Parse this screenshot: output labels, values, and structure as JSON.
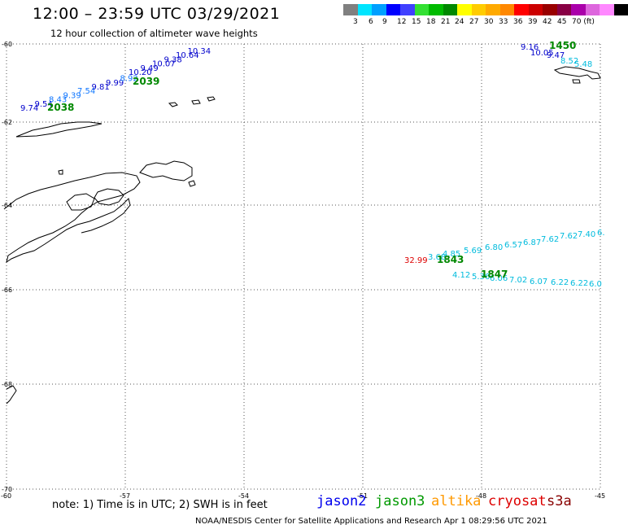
{
  "header": {
    "title": "12:00 – 23:59 UTC 03/29/2021",
    "subtitle": "12 hour collection of altimeter wave heights"
  },
  "legend": {
    "colors": [
      "#808080",
      "#00e5ff",
      "#00a0ff",
      "#0000ff",
      "#4040ff",
      "#33e033",
      "#00bb00",
      "#008800",
      "#ffff00",
      "#ffcc00",
      "#ffaa00",
      "#ff8800",
      "#ff0000",
      "#cc0000",
      "#990000",
      "#880044",
      "#aa00aa",
      "#dd66dd",
      "#ff88ff",
      "#000000"
    ],
    "labels": [
      "3",
      "6",
      "9",
      "12",
      "15",
      "18",
      "21",
      "24",
      "27",
      "30",
      "33",
      "36",
      "39",
      "42",
      "45",
      "70 (ft)"
    ]
  },
  "map_axes": {
    "lat_labels": [
      "-60",
      "-62",
      "-64",
      "-66",
      "-68",
      "-70"
    ],
    "lon_labels": [
      "-60",
      "-57",
      "-54",
      "-51",
      "-48",
      "-45"
    ]
  },
  "tracks": [
    {
      "time": "2038",
      "time_color": "#008800",
      "readings": [
        {
          "v": "9.74",
          "c": "#0000cc"
        },
        {
          "v": "9.54",
          "c": "#0000cc"
        },
        {
          "v": "8.43",
          "c": "#1177ff"
        },
        {
          "v": "9.39",
          "c": "#1177ff"
        },
        {
          "v": "7.54",
          "c": "#1177ff"
        },
        {
          "v": "9.81",
          "c": "#0000cc"
        },
        {
          "v": "9.99",
          "c": "#0000cc"
        },
        {
          "v": "8.92",
          "c": "#1177ff"
        }
      ]
    },
    {
      "time": "2039",
      "time_color": "#008800",
      "readings": [
        {
          "v": "10.20",
          "c": "#0000cc"
        },
        {
          "v": "9.49",
          "c": "#0000cc"
        },
        {
          "v": "10.07",
          "c": "#0000cc"
        },
        {
          "v": "9.38",
          "c": "#0000cc"
        },
        {
          "v": "10.64",
          "c": "#0000cc"
        },
        {
          "v": "10.34",
          "c": "#0000cc"
        }
      ]
    },
    {
      "time": "1450",
      "time_color": "#008800",
      "readings": [
        {
          "v": "9.16",
          "c": "#0000cc"
        },
        {
          "v": "10.05",
          "c": "#0000cc"
        },
        {
          "v": "9.47",
          "c": "#0000cc"
        },
        {
          "v": "8.52",
          "c": "#00bbdd"
        },
        {
          "v": "5.48",
          "c": "#00bbdd"
        }
      ]
    },
    {
      "time": "1843",
      "time_color": "#008800",
      "readings": [
        {
          "v": "32.99",
          "c": "#dd0000"
        },
        {
          "v": "3.68",
          "c": "#00bbdd"
        },
        {
          "v": "4.85",
          "c": "#00bbdd"
        },
        {
          "v": "5.69",
          "c": "#00bbdd"
        },
        {
          "v": "6.80",
          "c": "#00bbdd"
        },
        {
          "v": "6.57",
          "c": "#00bbdd"
        },
        {
          "v": "6.87",
          "c": "#00bbdd"
        },
        {
          "v": "7.62",
          "c": "#00bbdd"
        },
        {
          "v": "7.62",
          "c": "#00bbdd"
        },
        {
          "v": "7.40",
          "c": "#00bbdd"
        },
        {
          "v": "6.",
          "c": "#00bbdd"
        }
      ]
    },
    {
      "time": "1847",
      "time_color": "#008800",
      "readings": [
        {
          "v": "4.12",
          "c": "#00bbdd"
        },
        {
          "v": "5.36",
          "c": "#00bbdd"
        },
        {
          "v": "6.06",
          "c": "#00bbdd"
        },
        {
          "v": "7.02",
          "c": "#00bbdd"
        },
        {
          "v": "6.07",
          "c": "#00bbdd"
        },
        {
          "v": "6.22",
          "c": "#00bbdd"
        },
        {
          "v": "6.22",
          "c": "#00bbdd"
        },
        {
          "v": "6.0",
          "c": "#00bbdd"
        }
      ]
    }
  ],
  "footer": {
    "note": "note: 1) Time is in UTC; 2) SWH is in feet",
    "missions": [
      {
        "name": "jason2",
        "color": "#0000ee"
      },
      {
        "name": "jason3",
        "color": "#009900"
      },
      {
        "name": "altika",
        "color": "#ff9900"
      },
      {
        "name": "cryosat",
        "color": "#dd0000"
      },
      {
        "name": "s3a",
        "color": "#880000"
      }
    ],
    "credit": "NOAA/NESDIS Center for Satellite Applications and Research   Apr  1 08:29:56 UTC 2021"
  }
}
